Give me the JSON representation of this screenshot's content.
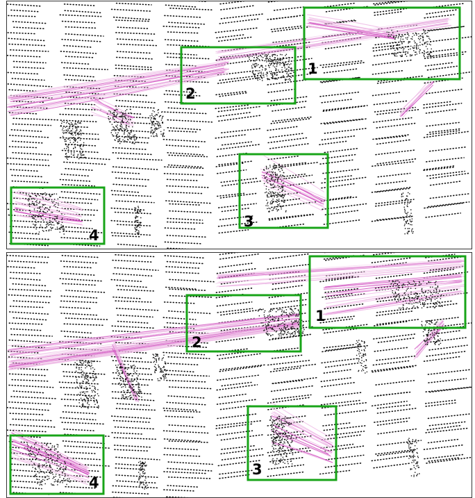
{
  "colors": {
    "box": "#18a418",
    "trail": "#cc44bb",
    "trail_light": "#eebbe6",
    "points": "#111111",
    "background": "#ffffff"
  },
  "panels": [
    {
      "name": "top",
      "regions": [
        {
          "label": "1"
        },
        {
          "label": "2"
        },
        {
          "label": "3"
        },
        {
          "label": "4"
        }
      ]
    },
    {
      "name": "bottom",
      "regions": [
        {
          "label": "1"
        },
        {
          "label": "2"
        },
        {
          "label": "3"
        },
        {
          "label": "4"
        }
      ]
    }
  ]
}
